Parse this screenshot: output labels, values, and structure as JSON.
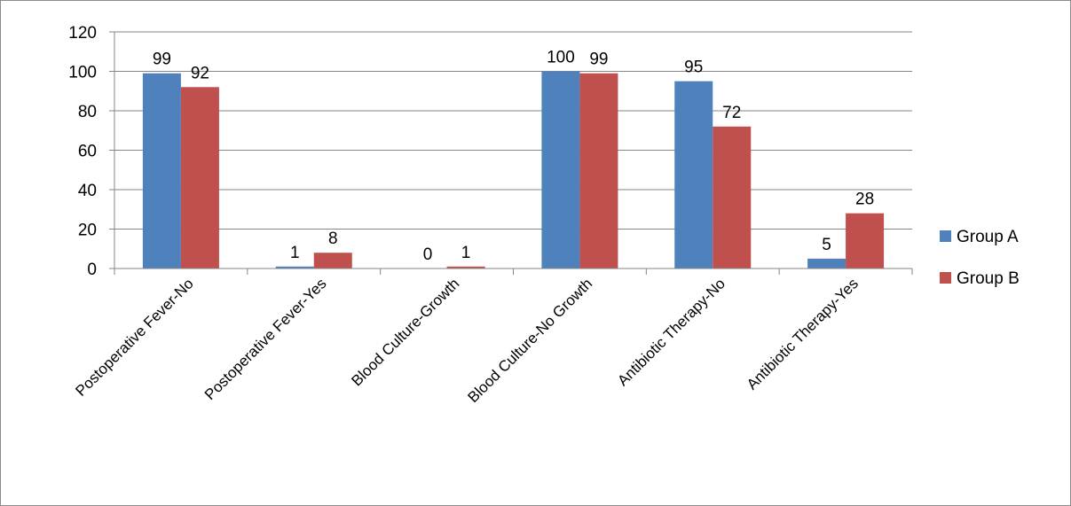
{
  "chart_data": {
    "type": "bar",
    "title": "",
    "xlabel": "",
    "ylabel": "",
    "categories": [
      "Postoperative Fever-No",
      "Postoperative Fever-Yes",
      "Blood Culture-Growth",
      "Blood Culture-No Growth",
      "Antibiotic Therapy-No",
      "Antibiotic Therapy-Yes"
    ],
    "series": [
      {
        "name": "Group A",
        "color": "#4F81BD",
        "values": [
          99,
          1,
          0,
          100,
          95,
          5
        ]
      },
      {
        "name": "Group B",
        "color": "#C0504D",
        "values": [
          92,
          8,
          1,
          99,
          72,
          28
        ]
      }
    ],
    "ylim": [
      0,
      120
    ],
    "yticks": [
      0,
      20,
      40,
      60,
      80,
      100,
      120
    ],
    "grid": true,
    "legend": "right",
    "data_labels": true
  }
}
